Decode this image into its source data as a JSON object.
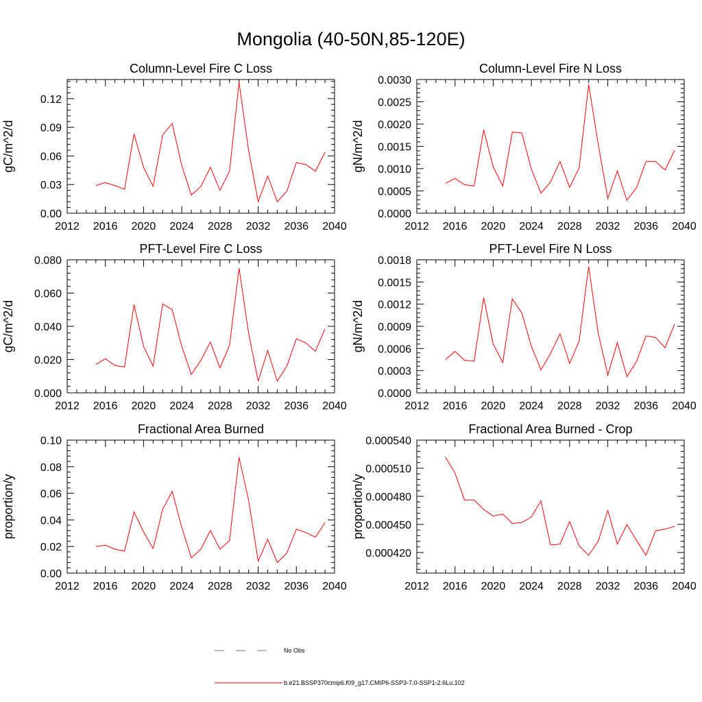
{
  "figure": {
    "title": "Mongolia (40-50N,85-120E)"
  },
  "chart_data": [
    {
      "type": "line",
      "title": "Column-Level Fire C Loss",
      "xlabel": "",
      "ylabel": "gC/m^2/d",
      "xlim": [
        2012,
        2040
      ],
      "ylim": [
        0,
        0.14
      ],
      "xticks": [
        2012,
        2016,
        2020,
        2024,
        2028,
        2032,
        2036,
        2040
      ],
      "yticks": [
        0,
        0.03,
        0.06,
        0.09,
        0.12
      ],
      "ytick_labels": [
        "0.00",
        "0.03",
        "0.06",
        "0.09",
        "0.12"
      ],
      "x": [
        2015,
        2016,
        2017,
        2018,
        2019,
        2020,
        2021,
        2022,
        2023,
        2024,
        2025,
        2026,
        2027,
        2028,
        2029,
        2030,
        2031,
        2032,
        2033,
        2034,
        2035,
        2036,
        2037,
        2038,
        2039
      ],
      "series": [
        {
          "color": "#ff0000",
          "values": [
            0.029,
            0.032,
            0.029,
            0.025,
            0.083,
            0.048,
            0.028,
            0.082,
            0.094,
            0.05,
            0.019,
            0.028,
            0.048,
            0.024,
            0.044,
            0.137,
            0.066,
            0.012,
            0.039,
            0.012,
            0.023,
            0.053,
            0.051,
            0.044,
            0.064
          ]
        }
      ]
    },
    {
      "type": "line",
      "title": "Column-Level Fire N Loss",
      "xlabel": "",
      "ylabel": "gN/m^2/d",
      "xlim": [
        2012,
        2040
      ],
      "ylim": [
        0,
        0.003
      ],
      "xticks": [
        2012,
        2016,
        2020,
        2024,
        2028,
        2032,
        2036,
        2040
      ],
      "yticks": [
        0,
        0.0005,
        0.001,
        0.0015,
        0.002,
        0.0025,
        0.003
      ],
      "ytick_labels": [
        "0.0000",
        "0.0005",
        "0.0010",
        "0.0015",
        "0.0020",
        "0.0025",
        "0.0030"
      ],
      "x": [
        2015,
        2016,
        2017,
        2018,
        2019,
        2020,
        2021,
        2022,
        2023,
        2024,
        2025,
        2026,
        2027,
        2028,
        2029,
        2030,
        2031,
        2032,
        2033,
        2034,
        2035,
        2036,
        2037,
        2038,
        2039
      ],
      "series": [
        {
          "color": "#ff0000",
          "values": [
            0.00067,
            0.00078,
            0.00064,
            0.00061,
            0.00187,
            0.00104,
            0.00061,
            0.00182,
            0.0018,
            0.00099,
            0.00045,
            0.0007,
            0.00116,
            0.00058,
            0.00102,
            0.00289,
            0.00155,
            0.00033,
            0.00095,
            0.00029,
            0.00057,
            0.00116,
            0.00116,
            0.00097,
            0.00141
          ]
        }
      ]
    },
    {
      "type": "line",
      "title": "PFT-Level Fire C Loss",
      "xlabel": "",
      "ylabel": "gC/m^2/d",
      "xlim": [
        2012,
        2040
      ],
      "ylim": [
        0,
        0.08
      ],
      "xticks": [
        2012,
        2016,
        2020,
        2024,
        2028,
        2032,
        2036,
        2040
      ],
      "yticks": [
        0,
        0.02,
        0.04,
        0.06,
        0.08
      ],
      "ytick_labels": [
        "0.000",
        "0.020",
        "0.040",
        "0.060",
        "0.080"
      ],
      "x": [
        2015,
        2016,
        2017,
        2018,
        2019,
        2020,
        2021,
        2022,
        2023,
        2024,
        2025,
        2026,
        2027,
        2028,
        2029,
        2030,
        2031,
        2032,
        2033,
        2034,
        2035,
        2036,
        2037,
        2038,
        2039
      ],
      "series": [
        {
          "color": "#ff0000",
          "values": [
            0.017,
            0.0205,
            0.0165,
            0.0155,
            0.053,
            0.028,
            0.016,
            0.0535,
            0.05,
            0.028,
            0.011,
            0.0195,
            0.0305,
            0.015,
            0.0285,
            0.075,
            0.036,
            0.007,
            0.0255,
            0.007,
            0.016,
            0.0325,
            0.03,
            0.025,
            0.0385
          ]
        }
      ]
    },
    {
      "type": "line",
      "title": "PFT-Level Fire N Loss",
      "xlabel": "",
      "ylabel": "gN/m^2/d",
      "xlim": [
        2012,
        2040
      ],
      "ylim": [
        0,
        0.0018
      ],
      "xticks": [
        2012,
        2016,
        2020,
        2024,
        2028,
        2032,
        2036,
        2040
      ],
      "yticks": [
        0,
        0.0003,
        0.0006,
        0.0009,
        0.0012,
        0.0015,
        0.0018
      ],
      "ytick_labels": [
        "0.0000",
        "0.0003",
        "0.0006",
        "0.0009",
        "0.0012",
        "0.0015",
        "0.0018"
      ],
      "x": [
        2015,
        2016,
        2017,
        2018,
        2019,
        2020,
        2021,
        2022,
        2023,
        2024,
        2025,
        2026,
        2027,
        2028,
        2029,
        2030,
        2031,
        2032,
        2033,
        2034,
        2035,
        2036,
        2037,
        2038,
        2039
      ],
      "series": [
        {
          "color": "#ff0000",
          "values": [
            0.00045,
            0.00056,
            0.00044,
            0.00043,
            0.00129,
            0.00066,
            0.00041,
            0.00127,
            0.00108,
            0.00063,
            0.00031,
            0.00053,
            0.0008,
            0.0004,
            0.0007,
            0.00171,
            0.00081,
            0.00024,
            0.00068,
            0.00022,
            0.00042,
            0.00077,
            0.00075,
            0.00061,
            0.00093
          ]
        }
      ]
    },
    {
      "type": "line",
      "title": "Fractional Area Burned",
      "xlabel": "",
      "ylabel": "proportion/y",
      "xlim": [
        2012,
        2040
      ],
      "ylim": [
        0,
        0.1
      ],
      "xticks": [
        2012,
        2016,
        2020,
        2024,
        2028,
        2032,
        2036,
        2040
      ],
      "yticks": [
        0,
        0.02,
        0.04,
        0.06,
        0.08,
        0.1
      ],
      "ytick_labels": [
        "0.00",
        "0.02",
        "0.04",
        "0.06",
        "0.08",
        "0.10"
      ],
      "x": [
        2015,
        2016,
        2017,
        2018,
        2019,
        2020,
        2021,
        2022,
        2023,
        2024,
        2025,
        2026,
        2027,
        2028,
        2029,
        2030,
        2031,
        2032,
        2033,
        2034,
        2035,
        2036,
        2037,
        2038,
        2039
      ],
      "series": [
        {
          "color": "#ff0000",
          "values": [
            0.02,
            0.021,
            0.018,
            0.0165,
            0.046,
            0.031,
            0.0185,
            0.048,
            0.0615,
            0.0345,
            0.0115,
            0.018,
            0.032,
            0.018,
            0.0245,
            0.087,
            0.055,
            0.009,
            0.0255,
            0.008,
            0.015,
            0.033,
            0.0305,
            0.027,
            0.038
          ]
        }
      ]
    },
    {
      "type": "line",
      "title": "Fractional Area Burned - Crop",
      "xlabel": "",
      "ylabel": "proportion/y",
      "xlim": [
        2012,
        2040
      ],
      "ylim": [
        0.000398,
        0.00054
      ],
      "xticks": [
        2012,
        2016,
        2020,
        2024,
        2028,
        2032,
        2036,
        2040
      ],
      "yticks": [
        0.00042,
        0.00045,
        0.00048,
        0.00051,
        0.00054
      ],
      "ytick_labels": [
        "0.000420",
        "0.000450",
        "0.000480",
        "0.000510",
        "0.000540"
      ],
      "x": [
        2015,
        2016,
        2017,
        2018,
        2019,
        2020,
        2021,
        2022,
        2023,
        2024,
        2025,
        2026,
        2027,
        2028,
        2029,
        2030,
        2031,
        2032,
        2033,
        2034,
        2035,
        2036,
        2037,
        2038,
        2039
      ],
      "series": [
        {
          "color": "#ff0000",
          "values": [
            0.000522,
            0.000505,
            0.000476,
            0.000476,
            0.000466,
            0.000459,
            0.000461,
            0.000451,
            0.000452,
            0.000458,
            0.000475,
            0.000428,
            0.000429,
            0.000453,
            0.000427,
            0.000417,
            0.000432,
            0.000465,
            0.000429,
            0.00045,
            0.000433,
            0.000417,
            0.000443,
            0.000445,
            0.000448
          ]
        }
      ]
    }
  ],
  "legend": {
    "items": [
      {
        "label": "No Obs",
        "color": "#6b6bb8",
        "dash": "dashed"
      },
      {
        "label": "b.e21.BSSP370cmip6.f09_g17.CMIP6-SSP3-7.0-SSP1-2.6Lu.102",
        "color": "#ff0000",
        "dash": "solid"
      }
    ]
  }
}
